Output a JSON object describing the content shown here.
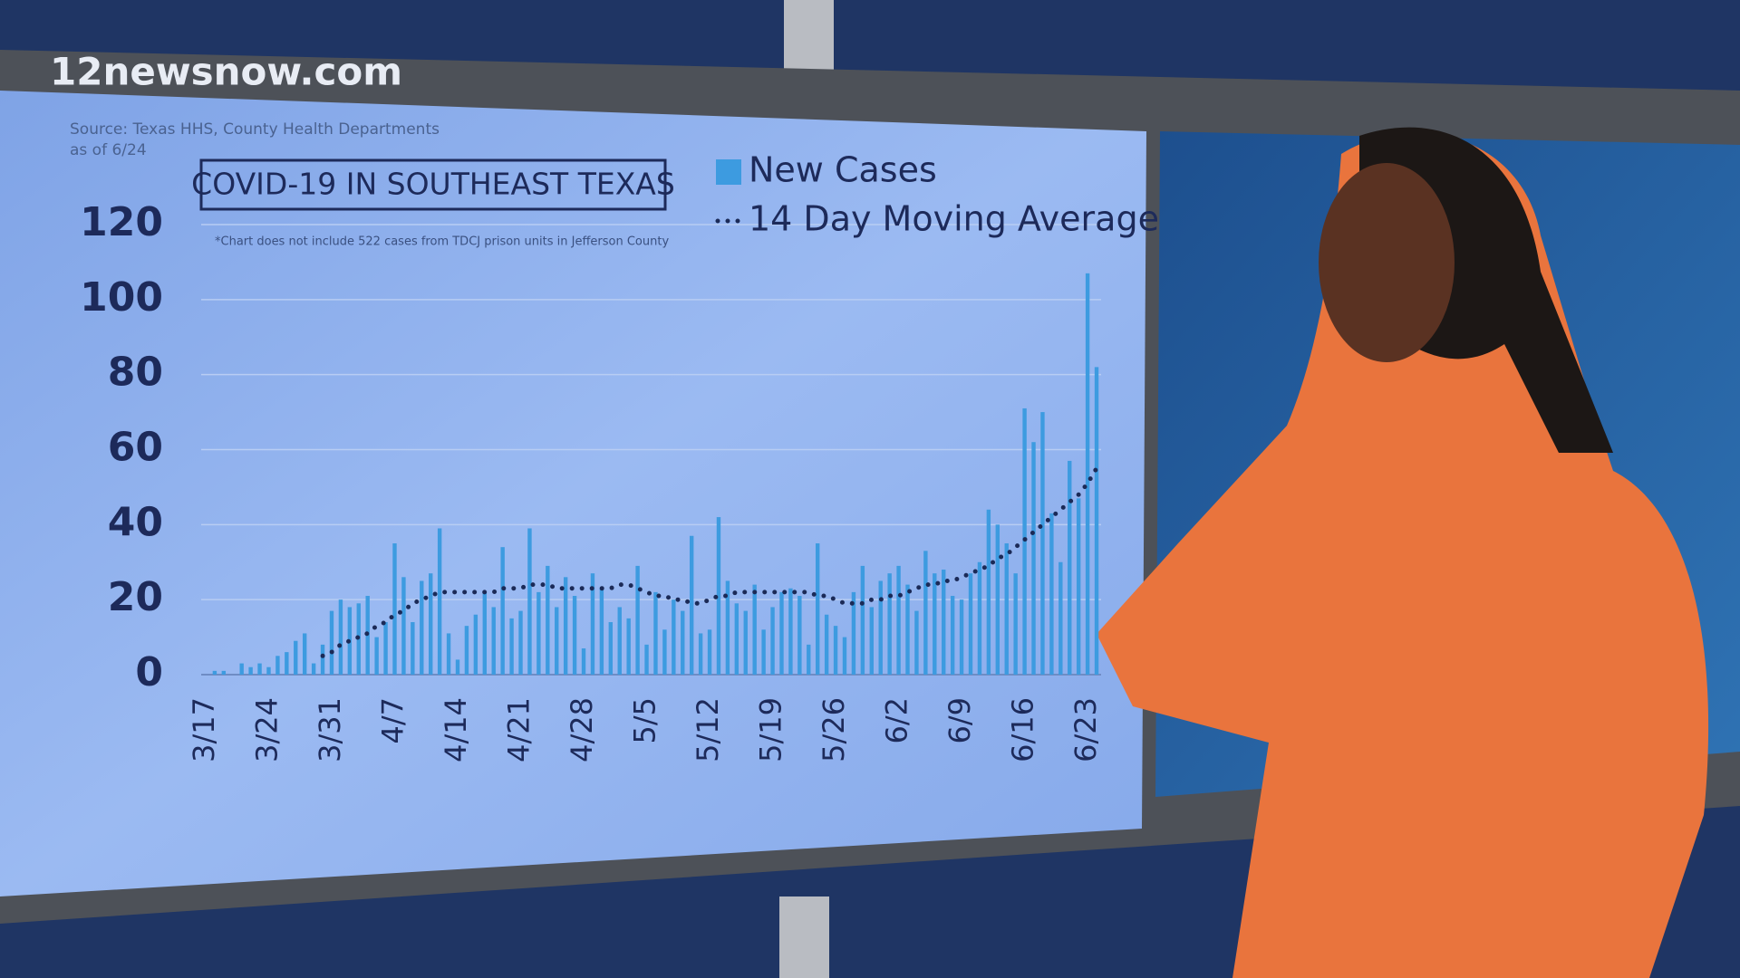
{
  "watermark": "12newsnow.com",
  "chart_data": {
    "type": "bar",
    "title": "COVID-19 IN SOUTHEAST TEXAS",
    "source": "Source: Texas HHS, County Health Departments",
    "as_of": "as of 6/24",
    "note": "*Chart does not include 522 cases from TDCJ prison units in Jefferson County",
    "categories": [
      "3/17",
      null,
      null,
      null,
      null,
      null,
      null,
      "3/24",
      null,
      null,
      null,
      null,
      null,
      null,
      "3/31",
      null,
      null,
      null,
      null,
      null,
      null,
      "4/7",
      null,
      null,
      null,
      null,
      null,
      null,
      "4/14",
      null,
      null,
      null,
      null,
      null,
      null,
      "4/21",
      null,
      null,
      null,
      null,
      null,
      null,
      "4/28",
      null,
      null,
      null,
      null,
      null,
      null,
      "5/5",
      null,
      null,
      null,
      null,
      null,
      null,
      "5/12",
      null,
      null,
      null,
      null,
      null,
      null,
      "5/19",
      null,
      null,
      null,
      null,
      null,
      null,
      "5/26",
      null,
      null,
      null,
      null,
      null,
      null,
      "6/2",
      null,
      null,
      null,
      null,
      null,
      null,
      "6/9",
      null,
      null,
      null,
      null,
      null,
      null,
      "6/16",
      null,
      null,
      null,
      null,
      null,
      null,
      "6/23",
      null
    ],
    "series": [
      {
        "name": "New Cases",
        "type": "bar",
        "color": "#3d9be0",
        "values": [
          0,
          1,
          1,
          0,
          3,
          2,
          3,
          2,
          5,
          6,
          9,
          11,
          3,
          8,
          17,
          20,
          18,
          19,
          21,
          10,
          14,
          35,
          26,
          14,
          25,
          27,
          39,
          11,
          4,
          13,
          16,
          22,
          18,
          34,
          15,
          17,
          39,
          22,
          29,
          18,
          26,
          21,
          7,
          27,
          23,
          14,
          18,
          15,
          29,
          8,
          22,
          12,
          20,
          17,
          37,
          11,
          12,
          42,
          25,
          19,
          17,
          24,
          12,
          18,
          22,
          23,
          21,
          8,
          35,
          16,
          13,
          10,
          22,
          29,
          18,
          25,
          27,
          29,
          24,
          17,
          33,
          27,
          28,
          21,
          20,
          27,
          30,
          44,
          40,
          35,
          27,
          71,
          62,
          70,
          43,
          30,
          57,
          47,
          107,
          82
        ]
      },
      {
        "name": "14 Day Moving Average",
        "type": "line",
        "color": "#1b2a57",
        "values": [
          null,
          null,
          null,
          null,
          null,
          null,
          null,
          null,
          null,
          null,
          null,
          null,
          null,
          5,
          6,
          8,
          9,
          10,
          11,
          13,
          14,
          16,
          17,
          19,
          20,
          21,
          22,
          22,
          22,
          22,
          22,
          22,
          22,
          23,
          23,
          23,
          24,
          24,
          24,
          23,
          23,
          23,
          23,
          23,
          23,
          23,
          24,
          24,
          23,
          22,
          21,
          21,
          20,
          20,
          19,
          19,
          20,
          21,
          21,
          22,
          22,
          22,
          22,
          22,
          22,
          22,
          22,
          22,
          21,
          21,
          20,
          19,
          19,
          19,
          20,
          20,
          21,
          21,
          22,
          23,
          24,
          24,
          25,
          25,
          26,
          27,
          28,
          29,
          31,
          32,
          34,
          36,
          38,
          40,
          42,
          44,
          46,
          48,
          51,
          55
        ]
      }
    ],
    "ylim": [
      0,
      120
    ],
    "yticks": [
      0,
      20,
      40,
      60,
      80,
      100,
      120
    ],
    "grid": true
  }
}
